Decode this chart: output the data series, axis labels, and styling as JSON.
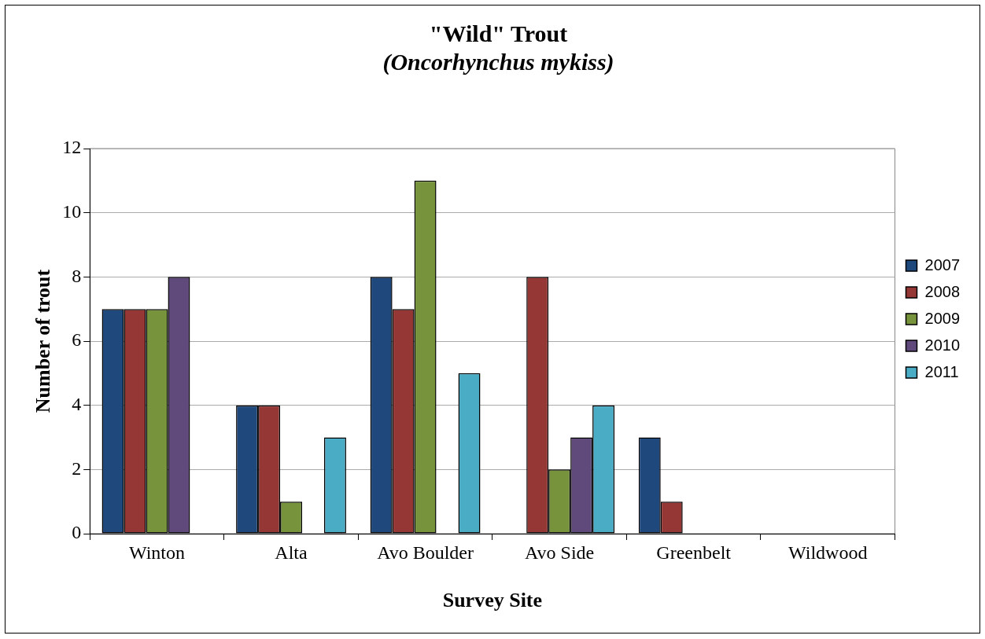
{
  "chart_data": {
    "type": "bar",
    "title": "\"Wild\" Trout",
    "subtitle": "(Oncorhynchus mykiss)",
    "xlabel": "Survey Site",
    "ylabel": "Number of trout",
    "categories": [
      "Winton",
      "Alta",
      "Avo Boulder",
      "Avo Side",
      "Greenbelt",
      "Wildwood"
    ],
    "series": [
      {
        "name": "2007",
        "color": "#1f497d",
        "values": [
          7,
          4,
          8,
          0,
          3,
          0
        ]
      },
      {
        "name": "2008",
        "color": "#953735",
        "values": [
          7,
          4,
          7,
          8,
          1,
          0
        ]
      },
      {
        "name": "2009",
        "color": "#77933c",
        "values": [
          7,
          1,
          11,
          2,
          0,
          0
        ]
      },
      {
        "name": "2010",
        "color": "#604a7b",
        "values": [
          8,
          0,
          0,
          3,
          0,
          0
        ]
      },
      {
        "name": "2011",
        "color": "#4bacc6",
        "values": [
          0,
          3,
          5,
          4,
          0,
          0
        ]
      }
    ],
    "ylim": [
      0,
      12
    ],
    "yticks": [
      0,
      2,
      4,
      6,
      8,
      10,
      12
    ],
    "grid": "y",
    "legend": "right"
  }
}
